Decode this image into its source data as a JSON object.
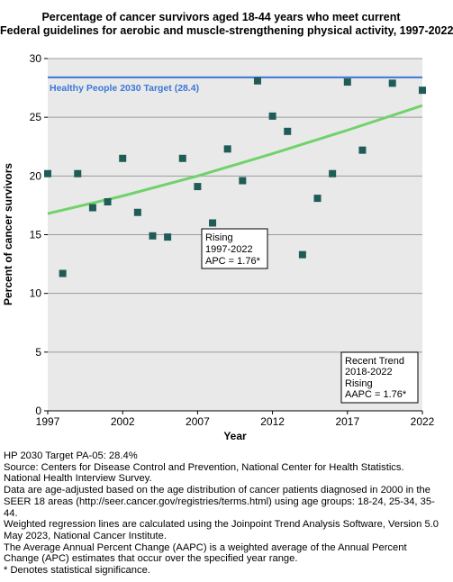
{
  "chart_data": {
    "type": "scatter",
    "title": [
      "Percentage of cancer survivors aged 18-44 years who meet current",
      "Federal guidelines for aerobic and muscle-strengthening physical activity, 1997-2022"
    ],
    "xlabel": "Year",
    "ylabel": "Percent of cancer survivors",
    "xlim": [
      1997,
      2022
    ],
    "ylim": [
      0,
      30
    ],
    "x_ticks": [
      1997,
      2002,
      2007,
      2012,
      2017,
      2022
    ],
    "y_ticks": [
      0,
      5,
      10,
      15,
      20,
      25,
      30
    ],
    "grid": "horizontal",
    "series": [
      {
        "type": "scatter",
        "color": "#1f5c57",
        "x": [
          1997,
          1998,
          1999,
          2000,
          2001,
          2002,
          2003,
          2004,
          2005,
          2006,
          2007,
          2008,
          2009,
          2010,
          2011,
          2012,
          2013,
          2014,
          2015,
          2016,
          2017,
          2018,
          2020,
          2022
        ],
        "y": [
          20.2,
          11.7,
          20.2,
          17.3,
          17.8,
          21.5,
          16.9,
          14.9,
          14.8,
          21.5,
          19.1,
          16.0,
          22.3,
          19.6,
          28.1,
          25.1,
          23.8,
          13.3,
          18.1,
          20.2,
          28.0,
          22.2,
          27.9,
          27.3
        ]
      },
      {
        "type": "line",
        "color": "#6fd36a",
        "x": [
          1997,
          2002,
          2007,
          2012,
          2017,
          2022
        ],
        "y": [
          16.8,
          18.3,
          20.0,
          21.9,
          23.9,
          26.0
        ]
      }
    ],
    "target_line": {
      "value": 28.4,
      "label": "Healthy People 2030 Target (28.4)",
      "color": "#3a78d8"
    },
    "annotations": [
      {
        "lines": [
          "Rising",
          "1997-2022",
          "APC =  1.76*"
        ]
      },
      {
        "lines": [
          "Recent Trend",
          "2018-2022",
          "Rising",
          "AAPC =  1.76*"
        ]
      }
    ]
  },
  "footnotes": [
    "HP 2030 Target PA-05: 28.4%",
    "Source: Centers for Disease Control and Prevention, National Center for Health Statistics. National Health Interview Survey.",
    "Data are age-adjusted based on the age distribution of cancer patients diagnosed in 2000 in the SEER 18 areas (http://seer.cancer.gov/registries/terms.html) using age groups: 18-24, 25-34, 35-44.",
    "Weighted regression lines are calculated using the Joinpoint Trend Analysis Software, Version 5.0 May 2023, National Cancer Institute.",
    "The Average Annual Percent Change (AAPC) is a weighted average of the Annual Percent Change (APC) estimates that occur over the specified year range.",
    "* Denotes statistical significance."
  ]
}
